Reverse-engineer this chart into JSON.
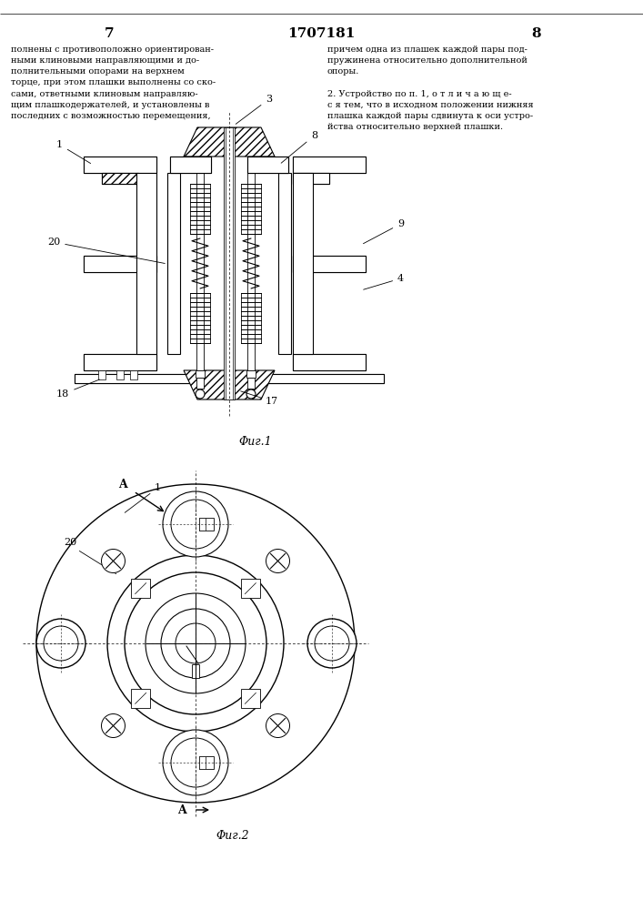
{
  "page_left": "7",
  "page_center": "1707181",
  "page_right": "8",
  "text_left": "полнены с противоположно ориентирован-\nными клиновыми направляющими и до-\nполнительными опорами на верхнем\nторце, при этом плашки выполнены со ско-\nсами, ответными клиновым направляю-\nщим плашкодержателей, и установлены в\nпоследних с возможностью перемещения,",
  "text_right": "причем одна из плашек каждой пары под-\nпружинена относительно дополнительной\nопоры.\n\n2. Устройство по п. 1, о т л и ч а ю щ е-\nс я тем, что в исходном положении нижняя\nплашка каждой пары сдвинута к оси устро-\nйства относительно верхней плашки.",
  "fig1_label": "Φиг.1",
  "fig2_label": "Φиг.2",
  "bg": "#ffffff",
  "lc": "#000000"
}
